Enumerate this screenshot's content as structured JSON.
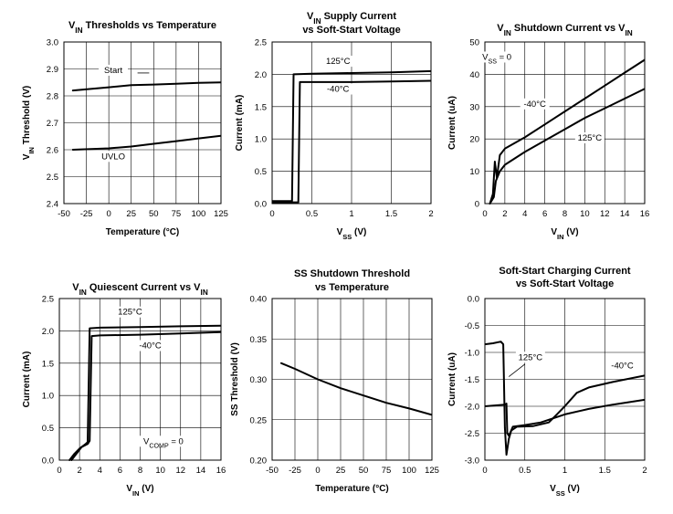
{
  "chart_data": [
    {
      "type": "line",
      "title": [
        "VIN Thresholds vs Temperature"
      ],
      "title_parts": [
        {
          "main": "V",
          "sub": "IN",
          "rest": " Thresholds vs Temperature"
        }
      ],
      "xlabel": "Temperature (°C)",
      "ylabel": "VIN Threshold (V)",
      "ylabel_parts": {
        "main": "V",
        "sub": "IN",
        "rest": " Threshold (V)"
      },
      "xlim": [
        -50,
        125
      ],
      "ylim": [
        2.4,
        3.0
      ],
      "xticks": [
        -50,
        -25,
        0,
        25,
        50,
        75,
        100,
        125
      ],
      "yticks": [
        2.4,
        2.5,
        2.6,
        2.7,
        2.8,
        2.9,
        3.0
      ],
      "xtick_labels": [
        "-50",
        "-25",
        "0",
        "25",
        "50",
        "75",
        "100",
        "125"
      ],
      "ytick_labels": [
        "2.4",
        "2.5",
        "2.6",
        "2.7",
        "2.8",
        "2.9",
        "3.0"
      ],
      "series": [
        {
          "name": "Start",
          "x": [
            -40,
            0,
            25,
            50,
            75,
            100,
            125
          ],
          "y": [
            2.82,
            2.832,
            2.84,
            2.842,
            2.845,
            2.848,
            2.85
          ]
        },
        {
          "name": "UVLO",
          "x": [
            -40,
            0,
            25,
            50,
            75,
            100,
            125
          ],
          "y": [
            2.6,
            2.605,
            2.612,
            2.622,
            2.632,
            2.642,
            2.652
          ]
        }
      ],
      "annotations": [
        {
          "text": "Start",
          "x": 5,
          "y": 2.885,
          "leader": [
            [
              32,
              2.885
            ],
            [
              45,
              2.885
            ]
          ]
        },
        {
          "text": "UVLO",
          "x": 5,
          "y": 2.565
        }
      ]
    },
    {
      "type": "line",
      "title": [
        "VIN Supply Current",
        "vs Soft-Start Voltage"
      ],
      "title_parts": [
        {
          "main": "V",
          "sub": "IN",
          "rest": " Supply Current"
        },
        {
          "main": "vs Soft-Start Voltage",
          "sub": "",
          "rest": ""
        }
      ],
      "xlabel": "VSS (V)",
      "xlabel_parts": {
        "main": "V",
        "sub": "SS",
        "rest": " (V)"
      },
      "ylabel": "Current (mA)",
      "xlim": [
        0,
        2
      ],
      "ylim": [
        0,
        2.5
      ],
      "xticks": [
        0,
        0.5,
        1,
        1.5,
        2
      ],
      "yticks": [
        0,
        0.5,
        1.0,
        1.5,
        2.0,
        2.5
      ],
      "xtick_labels": [
        "0",
        "0.5",
        "1",
        "1.5",
        "2"
      ],
      "ytick_labels": [
        "0.0",
        "0.5",
        "1.0",
        "1.5",
        "2.0",
        "2.5"
      ],
      "series": [
        {
          "name": "125°C",
          "x": [
            0,
            0.25,
            0.25,
            0.27,
            0.5,
            1.0,
            1.5,
            2.0
          ],
          "y": [
            0.04,
            0.04,
            0.04,
            2.0,
            2.01,
            2.02,
            2.03,
            2.05
          ]
        },
        {
          "name": "-40°C",
          "x": [
            0,
            0.33,
            0.33,
            0.35,
            0.5,
            1.0,
            1.5,
            2.0
          ],
          "y": [
            0.02,
            0.02,
            0.02,
            1.88,
            1.88,
            1.88,
            1.89,
            1.9
          ]
        }
      ],
      "annotations": [
        {
          "text": "125°C",
          "x": 0.83,
          "y": 2.16
        },
        {
          "text": "-40°C",
          "x": 0.83,
          "y": 1.73
        }
      ]
    },
    {
      "type": "line",
      "title": [
        "VIN Shutdown Current vs VIN"
      ],
      "title_parts": [
        {
          "main": "V",
          "sub": "IN",
          "rest": " Shutdown Current vs V",
          "sub2": "IN"
        }
      ],
      "xlabel": "VIN (V)",
      "xlabel_parts": {
        "main": "V",
        "sub": "IN",
        "rest": " (V)"
      },
      "ylabel": "Current (uA)",
      "xlim": [
        0,
        16
      ],
      "ylim": [
        0,
        50
      ],
      "xticks": [
        0,
        2,
        4,
        6,
        8,
        10,
        12,
        14,
        16
      ],
      "yticks": [
        0,
        10,
        20,
        30,
        40,
        50
      ],
      "xtick_labels": [
        "0",
        "2",
        "4",
        "6",
        "8",
        "10",
        "12",
        "14",
        "16"
      ],
      "ytick_labels": [
        "0",
        "10",
        "20",
        "30",
        "40",
        "50"
      ],
      "series": [
        {
          "name": "-40°C",
          "x": [
            0.5,
            0.8,
            1.0,
            1.2,
            1.5,
            2,
            4,
            6,
            8,
            10,
            12,
            14,
            16
          ],
          "y": [
            0,
            3,
            13,
            8,
            15,
            17,
            20.5,
            24.5,
            28.5,
            32.5,
            36.5,
            40.5,
            44.5
          ]
        },
        {
          "name": "125°C",
          "x": [
            0.5,
            0.9,
            1.1,
            1.5,
            2,
            4,
            6,
            8,
            10,
            12,
            14,
            16
          ],
          "y": [
            0,
            2,
            7,
            10,
            12,
            16,
            19.5,
            23,
            26.5,
            29.5,
            32.5,
            35.5
          ]
        }
      ],
      "annotations": [
        {
          "text": "VSS = 0",
          "parts": {
            "main": "V",
            "sub": "SS",
            "rest": " = 0"
          },
          "x": 1.2,
          "y": 44.5
        },
        {
          "text": "-40°C",
          "x": 5,
          "y": 30
        },
        {
          "text": "125°C",
          "x": 10.5,
          "y": 19.5
        }
      ]
    },
    {
      "type": "line",
      "title": [
        "VIN Quiescent Current vs VIN"
      ],
      "title_parts": [
        {
          "main": "V",
          "sub": "IN",
          "rest": " Quiescent Current vs V",
          "sub2": "IN"
        }
      ],
      "xlabel": "VIN (V)",
      "xlabel_parts": {
        "main": "V",
        "sub": "IN",
        "rest": " (V)"
      },
      "ylabel": "Current (mA)",
      "xlim": [
        0,
        16
      ],
      "ylim": [
        0,
        2.5
      ],
      "xticks": [
        0,
        2,
        4,
        6,
        8,
        10,
        12,
        14,
        16
      ],
      "yticks": [
        0,
        0.5,
        1.0,
        1.5,
        2.0,
        2.5
      ],
      "xtick_labels": [
        "0",
        "2",
        "4",
        "6",
        "8",
        "10",
        "12",
        "14",
        "16"
      ],
      "ytick_labels": [
        "0.0",
        "0.5",
        "1.0",
        "1.5",
        "2.0",
        "2.5"
      ],
      "series": [
        {
          "name": "125°C",
          "x": [
            1,
            1.5,
            2,
            2.6,
            2.8,
            3.0,
            4,
            8,
            12,
            16
          ],
          "y": [
            0,
            0.1,
            0.18,
            0.25,
            0.28,
            2.04,
            2.05,
            2.06,
            2.07,
            2.08
          ]
        },
        {
          "name": "-40°C",
          "x": [
            1.2,
            1.7,
            2.2,
            2.8,
            3.0,
            3.2,
            4,
            8,
            12,
            16
          ],
          "y": [
            0,
            0.1,
            0.2,
            0.25,
            0.3,
            1.92,
            1.93,
            1.94,
            1.96,
            1.98
          ]
        }
      ],
      "annotations": [
        {
          "text": "125°C",
          "x": 7,
          "y": 2.25
        },
        {
          "text": "-40°C",
          "x": 9,
          "y": 1.73
        },
        {
          "text": "VCOMP = 0",
          "parts": {
            "main": "V",
            "sub": "COMP",
            "rest": " = 0"
          },
          "x": 10.3,
          "y": 0.25
        }
      ]
    },
    {
      "type": "line",
      "title": [
        "SS Shutdown Threshold",
        "vs Temperature"
      ],
      "title_parts": [
        {
          "main": "SS Shutdown Threshold",
          "sub": "",
          "rest": ""
        },
        {
          "main": "vs Temperature",
          "sub": "",
          "rest": ""
        }
      ],
      "xlabel": "Temperature (°C)",
      "ylabel": "SS Threshold (V)",
      "xlim": [
        -50,
        125
      ],
      "ylim": [
        0.2,
        0.4
      ],
      "xticks": [
        -50,
        -25,
        0,
        25,
        50,
        75,
        100,
        125
      ],
      "yticks": [
        0.2,
        0.25,
        0.3,
        0.35,
        0.4
      ],
      "xtick_labels": [
        "-50",
        "-25",
        "0",
        "25",
        "50",
        "75",
        "100",
        "125"
      ],
      "ytick_labels": [
        "0.20",
        "0.25",
        "0.30",
        "0.35",
        "0.40"
      ],
      "series": [
        {
          "name": "",
          "x": [
            -40,
            -25,
            0,
            25,
            50,
            75,
            100,
            125
          ],
          "y": [
            0.32,
            0.313,
            0.3,
            0.289,
            0.28,
            0.271,
            0.264,
            0.256
          ]
        }
      ],
      "annotations": []
    },
    {
      "type": "line",
      "title": [
        "Soft-Start Charging Current",
        "vs Soft-Start Voltage"
      ],
      "title_parts": [
        {
          "main": "Soft-Start Charging Current",
          "sub": "",
          "rest": ""
        },
        {
          "main": "vs Soft-Start Voltage",
          "sub": "",
          "rest": ""
        }
      ],
      "xlabel": "VSS (V)",
      "xlabel_parts": {
        "main": "V",
        "sub": "SS",
        "rest": " (V)"
      },
      "ylabel": "Current (uA)",
      "xlim": [
        0,
        2
      ],
      "ylim": [
        -3.0,
        0.0
      ],
      "xticks": [
        0,
        0.5,
        1,
        1.5,
        2
      ],
      "yticks": [
        -3.0,
        -2.5,
        -2.0,
        -1.5,
        -1.0,
        -0.5,
        0.0
      ],
      "xtick_labels": [
        "0",
        "0.5",
        "1",
        "1.5",
        "2"
      ],
      "ytick_labels": [
        "-3.0",
        "-2.5",
        "-2.0",
        "-1.5",
        "-1.0",
        "-0.5",
        "0.0"
      ],
      "series": [
        {
          "name": "125°C",
          "x": [
            0,
            0.25,
            0.27,
            0.28,
            0.3,
            0.35,
            0.5,
            0.7,
            1.0,
            1.3,
            1.6,
            2.0
          ],
          "y": [
            -2.0,
            -1.97,
            -1.95,
            -2.5,
            -2.55,
            -2.38,
            -2.35,
            -2.3,
            -2.15,
            -2.05,
            -1.97,
            -1.88
          ]
        },
        {
          "name": "-40°C",
          "x": [
            0,
            0.1,
            0.2,
            0.23,
            0.25,
            0.27,
            0.3,
            0.33,
            0.4,
            0.6,
            0.8,
            0.9,
            1.0,
            1.15,
            1.3,
            1.6,
            2.0
          ],
          "y": [
            -0.85,
            -0.83,
            -0.8,
            -0.85,
            -2.4,
            -2.9,
            -2.6,
            -2.45,
            -2.38,
            -2.37,
            -2.3,
            -2.15,
            -2.0,
            -1.75,
            -1.65,
            -1.55,
            -1.43
          ]
        }
      ],
      "annotations": [
        {
          "text": "125°C",
          "x": 0.57,
          "y": -1.14,
          "leader": [
            [
              0.5,
              -1.22
            ],
            [
              0.3,
              -1.45
            ]
          ]
        },
        {
          "text": "-40°C",
          "x": 1.72,
          "y": -1.3
        }
      ]
    }
  ]
}
